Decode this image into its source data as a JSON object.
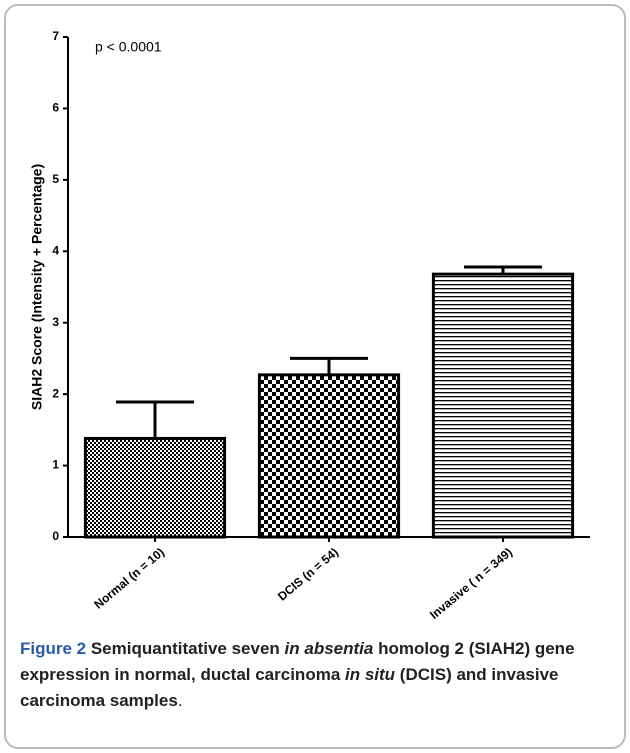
{
  "chart_data": {
    "type": "bar",
    "annotation": "p  < 0.0001",
    "ylabel": "SIAH2 Score  (Intensity  +  Percentage)",
    "categories": [
      "Normal (n = 10)",
      "DCIS (n = 54)",
      "Invasive ( n = 349)"
    ],
    "values": [
      1.38,
      2.27,
      3.68
    ],
    "errors": [
      0.51,
      0.23,
      0.1
    ],
    "ylim": [
      0,
      7
    ],
    "yticks": [
      0,
      1,
      2,
      3,
      4,
      5,
      6,
      7
    ],
    "grid": false
  },
  "caption": {
    "label": "Figure 2",
    "parts": [
      {
        "text": " Semiquantitative seven ",
        "style": "bold"
      },
      {
        "text": "in absentia",
        "style": "bold-italic"
      },
      {
        "text": " homolog 2 (SIAH2) gene expression in normal, ductal carcinoma ",
        "style": "bold"
      },
      {
        "text": "in situ",
        "style": "bold-italic"
      },
      {
        "text": " (DCIS) and invasive carcinoma samples",
        "style": "bold"
      },
      {
        "text": ".",
        "style": "normal"
      }
    ]
  }
}
